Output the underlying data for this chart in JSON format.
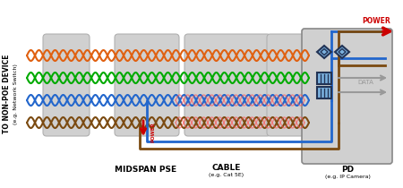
{
  "bg_color": "#ffffff",
  "wire_colors": [
    "#e06010",
    "#00aa00",
    "#2266cc",
    "#7b4a10"
  ],
  "red_overlay": "#ff5555",
  "cable_bg": "#cccccc",
  "cable_edge": "#aaaaaa",
  "pd_bg": "#d0d0d0",
  "pd_edge": "#888888",
  "connector_fill": "#7ab0dd",
  "connector_edge": "#223355",
  "power_line_blue": "#2266cc",
  "power_line_brown": "#7b4a10",
  "power_arrow_color": "#cc0000",
  "data_arrow_color": "#999999",
  "left_text1": "TO NON-POE DEVICE",
  "left_text2": "(e.g. Network Switch)",
  "label_midspan": "MIDSPAN PSE",
  "label_cable": "CABLE",
  "label_cable_sub": "(e.g. Cat 5E)",
  "label_pd": "PD",
  "label_pd_sub": "(e.g. IP Camera)",
  "label_power": "POWER",
  "label_data": "DATA",
  "fig_width": 4.5,
  "fig_height": 2.1,
  "dpi": 100
}
